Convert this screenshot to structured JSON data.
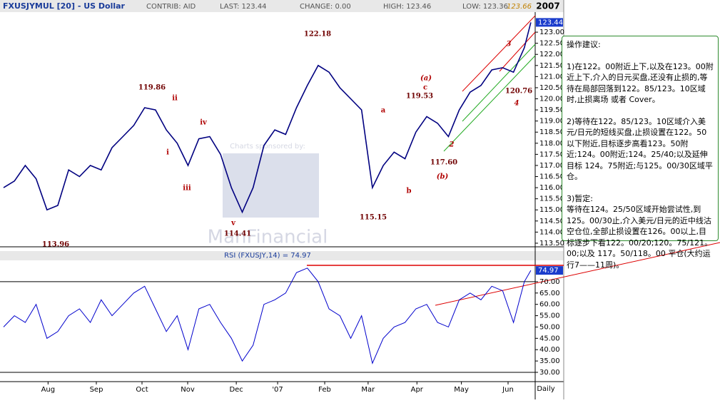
{
  "chart_data": [
    {
      "type": "line",
      "title": "FXUSJYMUL [20] - US Dollar",
      "stats": [
        "CONTRIB: AID",
        "LAST: 123.44",
        "CHANGE: 0.00",
        "HIGH: 123.46",
        "LOW: 123.36"
      ],
      "high_mark": "123.66",
      "year": "2007",
      "series": [
        {
          "name": "US Dollar",
          "color": "#000080",
          "x": [
            0,
            1,
            2,
            3,
            4,
            5,
            6,
            7,
            8,
            9,
            10,
            11,
            12,
            13,
            14,
            15,
            16,
            17,
            18,
            19,
            20,
            21,
            22,
            23,
            24,
            25,
            26,
            27,
            28,
            29,
            30,
            31,
            32,
            33,
            34,
            35,
            36,
            37,
            38,
            39,
            40,
            41,
            42,
            43,
            44,
            45,
            46,
            47,
            48,
            48.6
          ],
          "values": [
            116.0,
            116.3,
            117.0,
            116.4,
            115.0,
            115.2,
            116.8,
            116.5,
            117.0,
            116.8,
            117.8,
            118.3,
            118.8,
            119.6,
            119.5,
            118.6,
            118.0,
            117.0,
            118.2,
            118.3,
            117.5,
            116.0,
            114.9,
            116.0,
            117.9,
            118.6,
            118.4,
            119.6,
            120.6,
            121.5,
            121.2,
            120.5,
            120.0,
            119.5,
            116.0,
            117.0,
            117.6,
            117.3,
            118.5,
            119.2,
            118.9,
            118.3,
            119.5,
            120.3,
            120.6,
            121.3,
            121.4,
            121.2,
            122.3,
            123.44
          ]
        }
      ],
      "xlim": [
        0,
        49
      ],
      "ylim": [
        113.37,
        123.87
      ],
      "yticks": [
        {
          "value": 113.5,
          "label": "113.50"
        },
        {
          "value": 114,
          "label": "114.00"
        },
        {
          "value": 114.5,
          "label": "114.50"
        },
        {
          "value": 115,
          "label": "115.00"
        },
        {
          "value": 115.5,
          "label": "115.50"
        },
        {
          "value": 116,
          "label": "116.00"
        },
        {
          "value": 116.5,
          "label": "116.50"
        },
        {
          "value": 117,
          "label": "117.00"
        },
        {
          "value": 117.5,
          "label": "117.50"
        },
        {
          "value": 118,
          "label": "118.00"
        },
        {
          "value": 118.5,
          "label": "118.50"
        },
        {
          "value": 119,
          "label": "119.00"
        },
        {
          "value": 119.5,
          "label": "119.50"
        },
        {
          "value": 120,
          "label": "120.00"
        },
        {
          "value": 120.5,
          "label": "120.50"
        },
        {
          "value": 121,
          "label": "121.00"
        },
        {
          "value": 121.5,
          "label": "121.50"
        },
        {
          "value": 122,
          "label": "122.00"
        },
        {
          "value": 122.5,
          "label": "122.50"
        },
        {
          "value": 123,
          "label": "123.00"
        }
      ],
      "annotations": [
        "119.86",
        "113.96",
        "114.41",
        "122.18",
        "115.15",
        "119.53",
        "117.60",
        "120.76",
        "ii",
        "i",
        "iii",
        "iv",
        "v",
        "a",
        "b",
        "c",
        "(a)",
        "(b)",
        "3",
        "2",
        "4"
      ],
      "watermark": [
        "Charts sponsored by:",
        "ManFinancial"
      ],
      "note": [
        "操作建议:",
        "1)在122。00附近上下,以及在123。00附近上下,介入的日元买盘,还没有止损的,等待在局部回落到122。85/123。10区域时,止损离场 或者 Cover。",
        "2)等待在122。85/123。10区域介入美元/日元的短线买盘,止损设置在122。50以下附近,目标逐步高看123。50附近;124。00附近;124。25/40;以及延伸目标 124。75附近;与125。00/30区域平仓。",
        "3)暂定:",
        "等待在124。25/50区域开始尝试性,到125。00/30止,介入美元/日元的近中线沽空仓位,全部止损设置在126。00以上,目标逐步下看122。00/20;120。75/121。00;以及 117。50/118。00 平仓(大约运行7——11周)。"
      ]
    },
    {
      "type": "line",
      "title": "RSI (FXUSJY,14) = 74.97",
      "series": [
        {
          "name": "RSI",
          "color": "#0000cc",
          "x": [
            0,
            1,
            2,
            3,
            4,
            5,
            6,
            7,
            8,
            9,
            10,
            11,
            12,
            13,
            14,
            15,
            16,
            17,
            18,
            19,
            20,
            21,
            22,
            23,
            24,
            25,
            26,
            27,
            28,
            29,
            30,
            31,
            32,
            33,
            34,
            35,
            36,
            37,
            38,
            39,
            40,
            41,
            42,
            43,
            44,
            45,
            46,
            47,
            48,
            48.6
          ],
          "values": [
            50,
            55,
            52,
            60,
            45,
            48,
            55,
            58,
            52,
            62,
            55,
            60,
            65,
            68,
            58,
            48,
            55,
            40,
            58,
            60,
            52,
            45,
            35,
            42,
            60,
            62,
            65,
            74,
            76,
            70,
            58,
            55,
            45,
            55,
            34,
            45,
            50,
            52,
            58,
            60,
            52,
            50,
            62,
            65,
            62,
            68,
            66,
            52,
            70,
            74.97
          ]
        }
      ],
      "xlim": [
        0,
        49
      ],
      "ylim": [
        25.9,
        79.1
      ],
      "yticks": [
        {
          "value": 30,
          "label": "30.00"
        },
        {
          "value": 35,
          "label": "35.00"
        },
        {
          "value": 40,
          "label": "40.00"
        },
        {
          "value": 45,
          "label": "45.00"
        },
        {
          "value": 50,
          "label": "50.00"
        },
        {
          "value": 55,
          "label": "55.00"
        },
        {
          "value": 60,
          "label": "60.00"
        },
        {
          "value": 65,
          "label": "65.00"
        },
        {
          "value": 70,
          "label": "70.00"
        }
      ],
      "xticks": [
        {
          "value": 4.1,
          "label": "Aug"
        },
        {
          "value": 8.55,
          "label": "Sep"
        },
        {
          "value": 12.76,
          "label": "Oct"
        },
        {
          "value": 16.97,
          "label": "Nov"
        },
        {
          "value": 21.45,
          "label": "Dec"
        },
        {
          "value": 25.26,
          "label": "'07"
        },
        {
          "value": 29.6,
          "label": "Feb"
        },
        {
          "value": 33.6,
          "label": "Mar"
        },
        {
          "value": 38.1,
          "label": "Apr"
        },
        {
          "value": 42.2,
          "label": "May"
        },
        {
          "value": 46.5,
          "label": "Jun"
        }
      ],
      "x_unit": "Daily"
    }
  ]
}
